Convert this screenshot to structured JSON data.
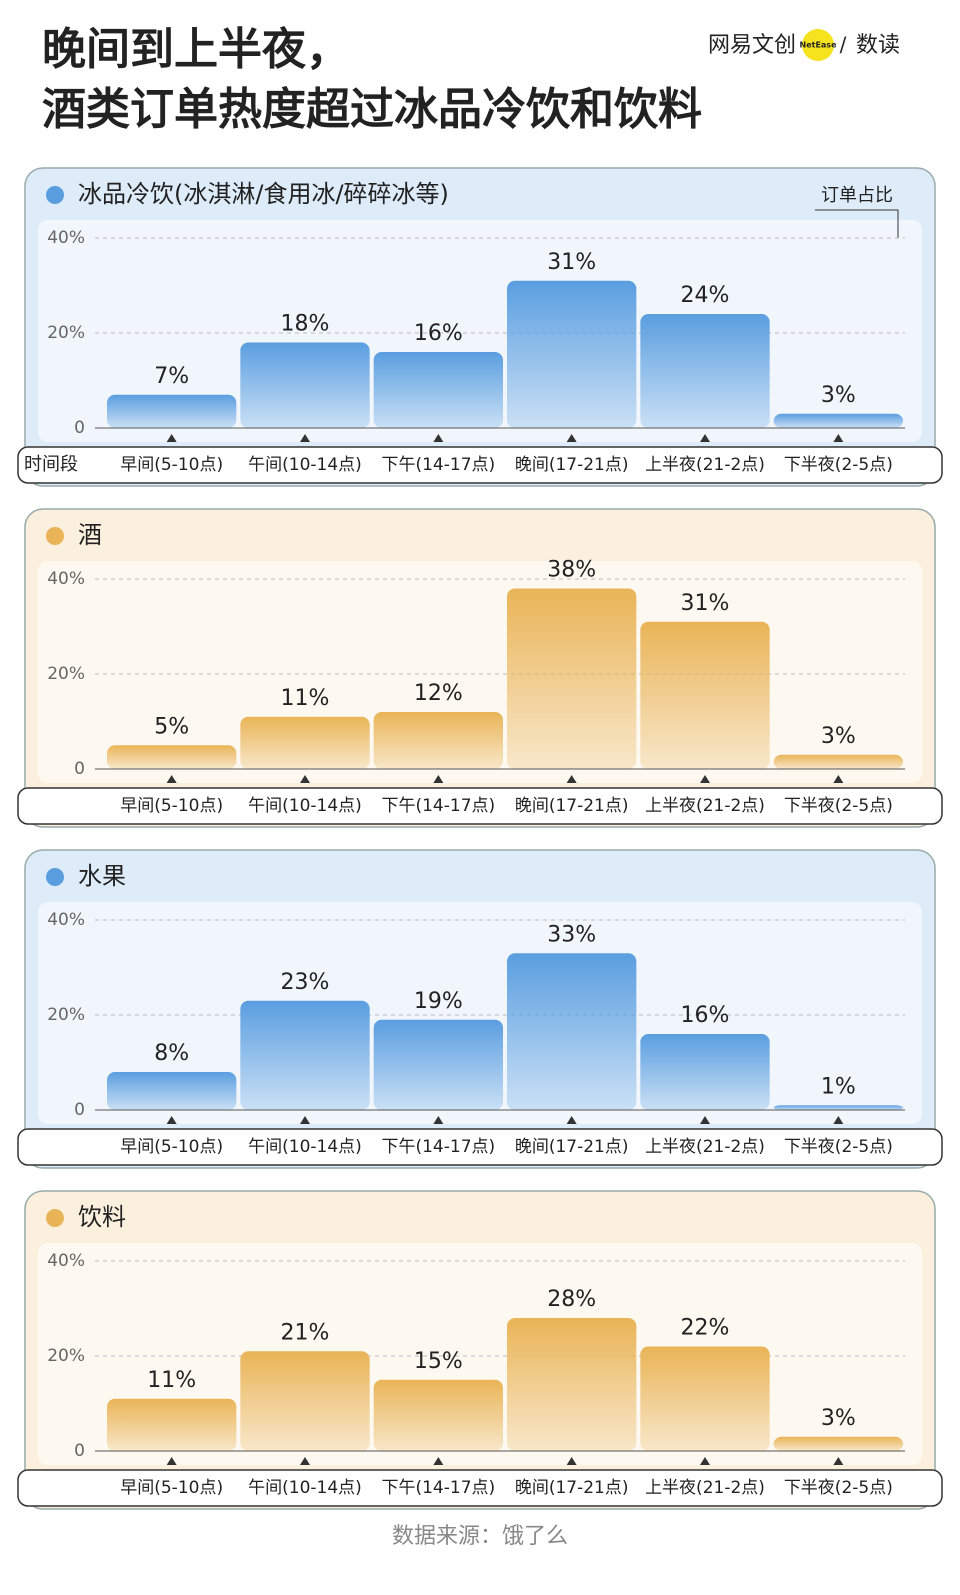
{
  "header": {
    "title": [
      "晚间到上半夜，",
      "酒类订单热度超过冰品冷饮和饮料"
    ],
    "logo": "网易文创",
    "logo_badge": "NetEase",
    "logo_sep": "/",
    "logo_suffix": "数读"
  },
  "source": "数据来源：饿了么",
  "chart_data": [
    {
      "type": "bar",
      "title": "冰品冷饮(冰淇淋/食用冰/碎碎冰等)",
      "y_label": "订单占比",
      "x_label": "时间段",
      "color": "#5a9ee0",
      "categories": [
        "早间(5-10点)",
        "午间(10-14点)",
        "下午(14-17点)",
        "晚间(17-21点)",
        "上半夜(21-2点)",
        "下半夜(2-5点)"
      ],
      "values": [
        7,
        18,
        16,
        31,
        24,
        3
      ],
      "value_labels": [
        "7%",
        "18%",
        "16%",
        "31%",
        "24%",
        "3%"
      ],
      "ylim": [
        0,
        40
      ],
      "yticks": [
        0,
        {
          "value": 20,
          "label": "20%"
        },
        {
          "value": 40,
          "label": "40%"
        }
      ],
      "grid": true
    },
    {
      "type": "bar",
      "title": "酒",
      "color": "#e9b457",
      "categories": [
        "早间(5-10点)",
        "午间(10-14点)",
        "下午(14-17点)",
        "晚间(17-21点)",
        "上半夜(21-2点)",
        "下半夜(2-5点)"
      ],
      "values": [
        5,
        11,
        12,
        38,
        31,
        3
      ],
      "value_labels": [
        "5%",
        "11%",
        "12%",
        "38%",
        "31%",
        "3%"
      ],
      "ylim": [
        0,
        40
      ],
      "yticks": [
        0,
        {
          "value": 20,
          "label": "20%"
        },
        {
          "value": 40,
          "label": "40%"
        }
      ],
      "grid": true
    },
    {
      "type": "bar",
      "title": "水果",
      "color": "#5a9ee0",
      "categories": [
        "早间(5-10点)",
        "午间(10-14点)",
        "下午(14-17点)",
        "晚间(17-21点)",
        "上半夜(21-2点)",
        "下半夜(2-5点)"
      ],
      "values": [
        8,
        23,
        19,
        33,
        16,
        1
      ],
      "value_labels": [
        "8%",
        "23%",
        "19%",
        "33%",
        "16%",
        "1%"
      ],
      "ylim": [
        0,
        40
      ],
      "yticks": [
        0,
        {
          "value": 20,
          "label": "20%"
        },
        {
          "value": 40,
          "label": "40%"
        }
      ],
      "grid": true
    },
    {
      "type": "bar",
      "title": "饮料",
      "color": "#e9b457",
      "categories": [
        "早间(5-10点)",
        "午间(10-14点)",
        "下午(14-17点)",
        "晚间(17-21点)",
        "上半夜(21-2点)",
        "下半夜(2-5点)"
      ],
      "values": [
        11,
        21,
        15,
        28,
        22,
        3
      ],
      "value_labels": [
        "11%",
        "21%",
        "15%",
        "28%",
        "22%",
        "3%"
      ],
      "ylim": [
        0,
        40
      ],
      "yticks": [
        0,
        {
          "value": 20,
          "label": "20%"
        },
        {
          "value": 40,
          "label": "40%"
        }
      ],
      "grid": true
    }
  ]
}
